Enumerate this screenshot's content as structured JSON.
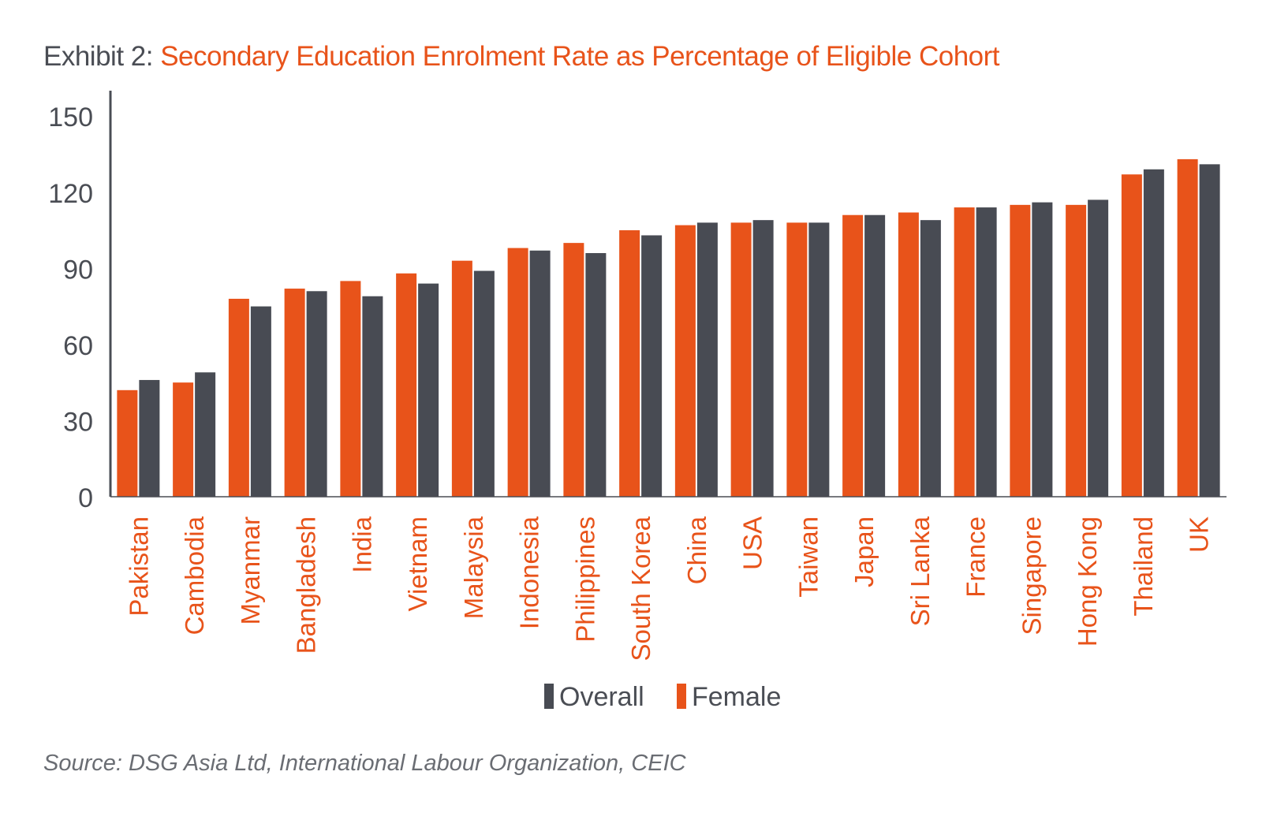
{
  "title": {
    "prefix": "Exhibit 2:",
    "main": "Secondary Education Enrolment Rate as Percentage of Eligible Cohort"
  },
  "source": "Source: DSG Asia Ltd, International Labour Organization, CEIC",
  "colors": {
    "overall": "#484b53",
    "female": "#e8531a",
    "axis": "#4a4d54",
    "label": "#e8531a"
  },
  "chart_data": {
    "type": "bar",
    "title": "Secondary Education Enrolment Rate as Percentage of Eligible Cohort",
    "xlabel": "",
    "ylabel": "",
    "ylim": [
      0,
      160
    ],
    "yticks": [
      0,
      30,
      60,
      90,
      120,
      150
    ],
    "grid": false,
    "legend": "bottom-center",
    "categories": [
      "Pakistan",
      "Cambodia",
      "Myanmar",
      "Bangladesh",
      "India",
      "Vietnam",
      "Malaysia",
      "Indonesia",
      "Philippines",
      "South Korea",
      "China",
      "USA",
      "Taiwan",
      "Japan",
      "Sri Lanka",
      "France",
      "Singapore",
      "Hong Kong",
      "Thailand",
      "UK"
    ],
    "series": [
      {
        "name": "Female",
        "values": [
          42,
          45,
          78,
          82,
          85,
          88,
          93,
          98,
          100,
          105,
          107,
          108,
          108,
          111,
          112,
          114,
          115,
          115,
          127,
          133
        ]
      },
      {
        "name": "Overall",
        "values": [
          46,
          49,
          75,
          81,
          79,
          84,
          89,
          97,
          96,
          103,
          108,
          109,
          108,
          111,
          109,
          114,
          116,
          117,
          129,
          131
        ]
      }
    ],
    "legend_order": [
      "Overall",
      "Female"
    ]
  }
}
